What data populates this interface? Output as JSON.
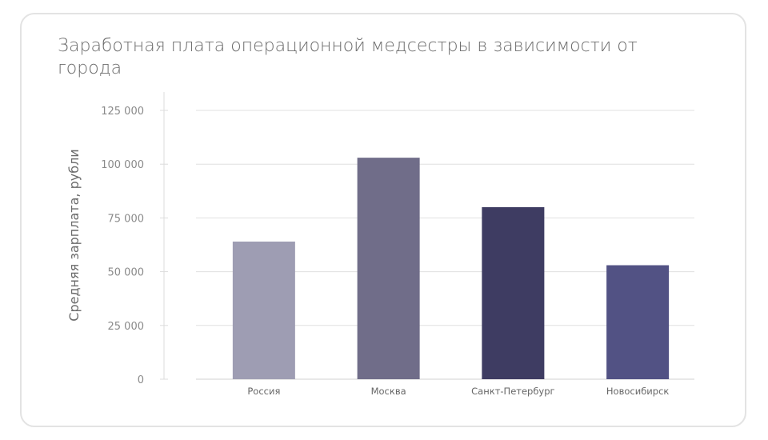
{
  "chart_data": {
    "type": "bar",
    "title": "Заработная плата операционной медсестры в зависимости от города",
    "xlabel": "",
    "ylabel": "Средняя зарплата, рубли",
    "categories": [
      "Россия",
      "Москва",
      "Санкт-Петербург",
      "Новосибирск"
    ],
    "values": [
      64000,
      103000,
      80000,
      53000
    ],
    "colors": [
      "#9e9db3",
      "#706d89",
      "#3e3c62",
      "#525284"
    ],
    "ylim": [
      0,
      125000
    ],
    "yticks": [
      0,
      25000,
      50000,
      75000,
      100000,
      125000
    ],
    "ytick_labels": [
      "0",
      "25 000",
      "50 000",
      "75 000",
      "100 000",
      "125 000"
    ],
    "grid": true,
    "legend": "none"
  }
}
